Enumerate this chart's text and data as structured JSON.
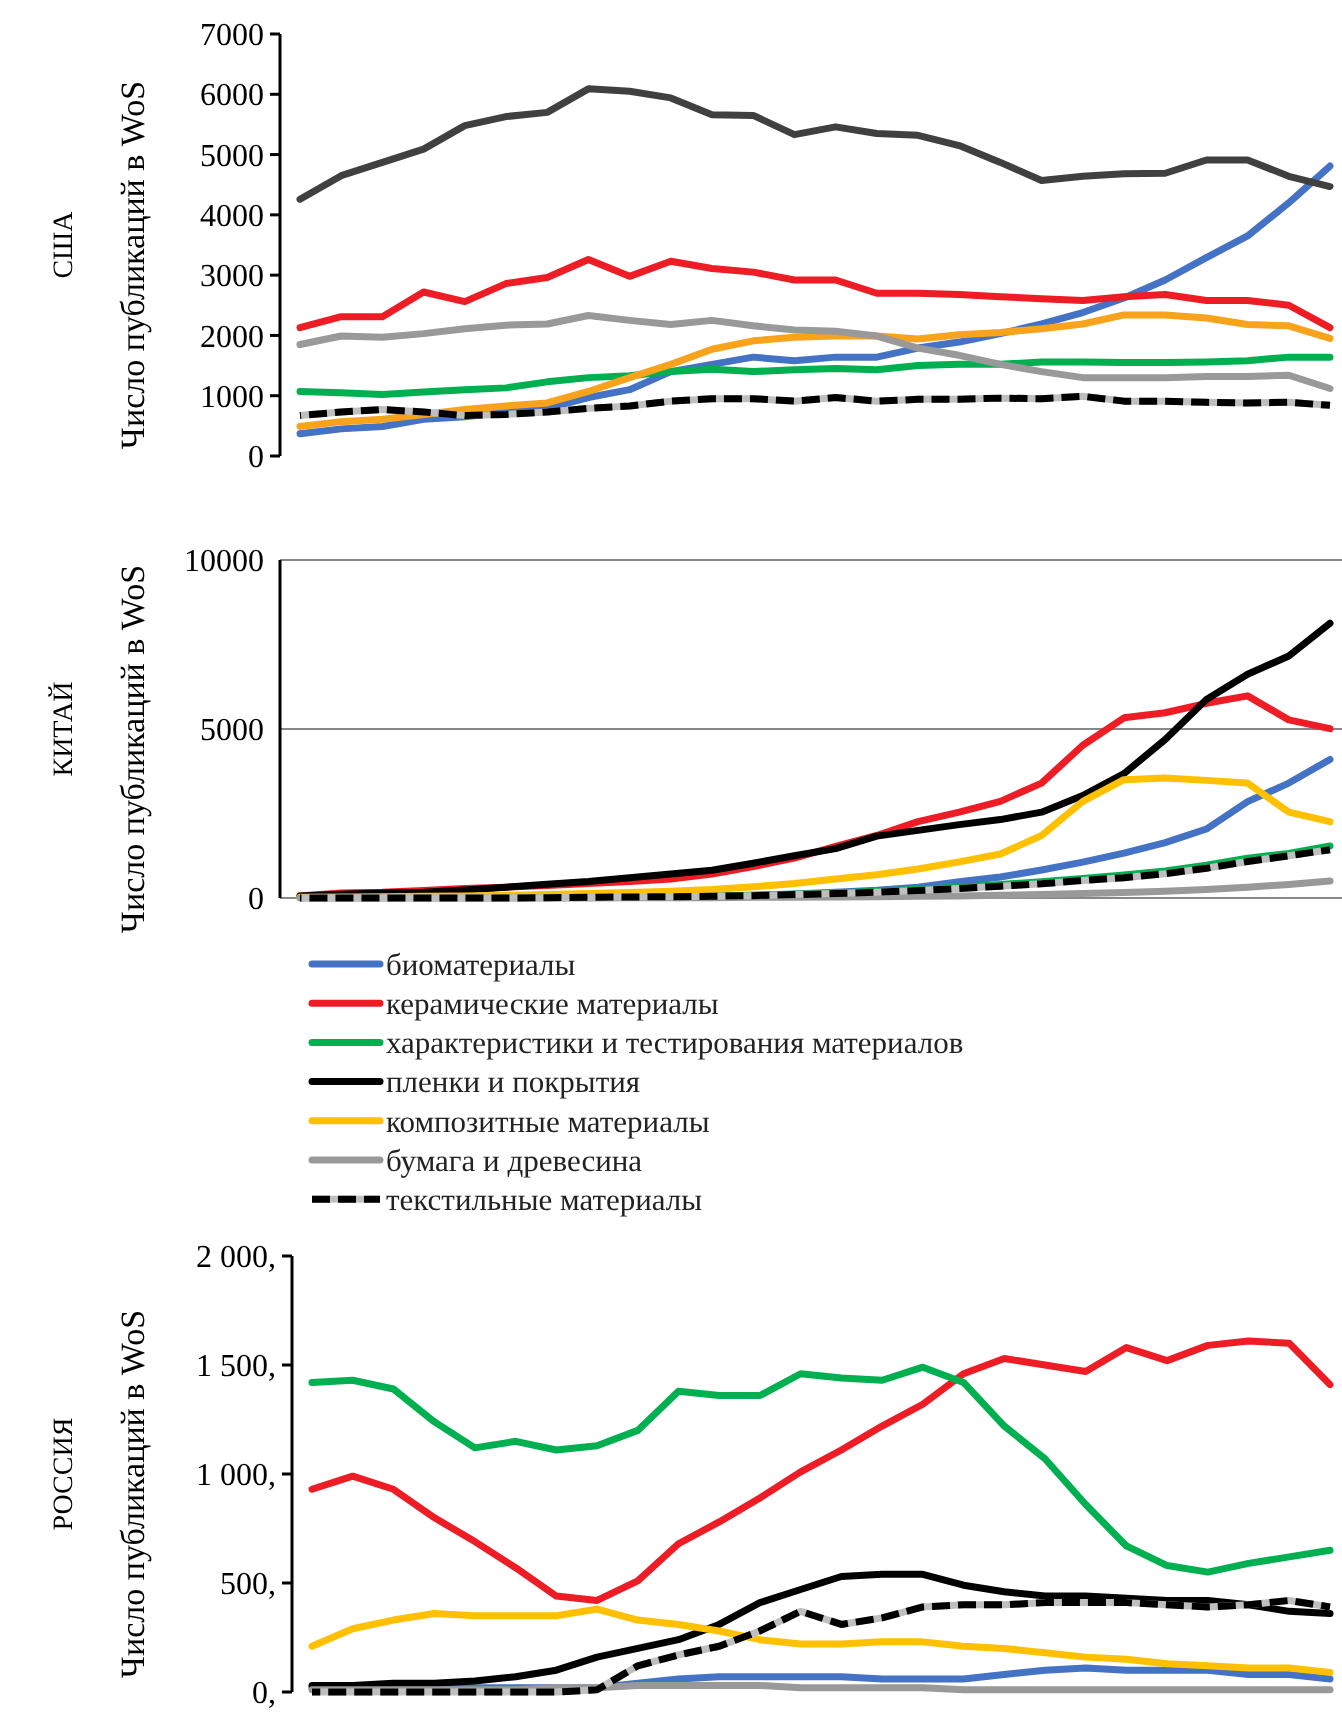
{
  "chart_data": [
    {
      "type": "line",
      "title": "США",
      "ylabel": "Число публикаций в WoS",
      "categories": [
        null,
        null,
        null,
        null,
        null,
        null,
        null,
        null,
        null,
        null,
        null,
        null,
        null,
        null,
        null,
        null,
        null,
        null,
        null,
        null,
        null,
        null,
        null,
        null,
        null,
        null
      ],
      "ylim": [
        0,
        7000
      ],
      "yticks": [
        0,
        1000,
        2000,
        3000,
        4000,
        5000,
        6000,
        7000
      ],
      "tick_labels": "y",
      "grid": false,
      "legend": false,
      "series": [
        {
          "color": "#4472c4",
          "values": [
            370,
            450,
            490,
            610,
            650,
            730,
            790,
            970,
            1100,
            1400,
            1520,
            1640,
            1580,
            1640,
            1640,
            1790,
            1890,
            2030,
            2190,
            2380,
            2620,
            2920,
            3290,
            3650,
            4200,
            4810
          ]
        },
        {
          "color": "#ee1c25",
          "values": [
            2130,
            2310,
            2310,
            2720,
            2560,
            2860,
            2960,
            3260,
            2980,
            3230,
            3110,
            3050,
            2920,
            2920,
            2700,
            2700,
            2680,
            2640,
            2610,
            2580,
            2640,
            2680,
            2580,
            2580,
            2500,
            2130
          ]
        },
        {
          "color": "#00b050",
          "values": [
            1070,
            1050,
            1020,
            1060,
            1100,
            1130,
            1230,
            1300,
            1330,
            1400,
            1440,
            1400,
            1430,
            1450,
            1430,
            1500,
            1520,
            1520,
            1560,
            1560,
            1550,
            1550,
            1560,
            1580,
            1640,
            1640
          ]
        },
        {
          "color": "#404040",
          "values": [
            4260,
            4650,
            4870,
            5090,
            5480,
            5630,
            5700,
            6090,
            6050,
            5940,
            5660,
            5650,
            5330,
            5460,
            5350,
            5320,
            5150,
            4870,
            4570,
            4640,
            4680,
            4690,
            4910,
            4910,
            4640,
            4470
          ]
        },
        {
          "color": "#f9a21b",
          "values": [
            490,
            570,
            610,
            690,
            770,
            830,
            880,
            1070,
            1300,
            1520,
            1770,
            1910,
            1970,
            1990,
            1990,
            1940,
            2010,
            2050,
            2110,
            2190,
            2340,
            2340,
            2290,
            2180,
            2160,
            1950
          ]
        },
        {
          "color": "#999999",
          "values": [
            1850,
            1990,
            1970,
            2030,
            2110,
            2170,
            2190,
            2330,
            2250,
            2180,
            2250,
            2160,
            2090,
            2070,
            1990,
            1790,
            1670,
            1520,
            1400,
            1300,
            1300,
            1300,
            1320,
            1320,
            1340,
            1120
          ]
        },
        {
          "color": "#000000",
          "line_style": "dashed",
          "values": [
            670,
            730,
            770,
            730,
            670,
            690,
            730,
            790,
            830,
            910,
            950,
            950,
            910,
            970,
            910,
            940,
            940,
            960,
            950,
            990,
            910,
            910,
            890,
            880,
            890,
            840
          ]
        }
      ]
    },
    {
      "type": "line",
      "title": "КИТАЙ",
      "ylabel": "Число публикаций в WoS",
      "categories": [
        null,
        null,
        null,
        null,
        null,
        null,
        null,
        null,
        null,
        null,
        null,
        null,
        null,
        null,
        null,
        null,
        null,
        null,
        null,
        null,
        null,
        null,
        null,
        null,
        null,
        null
      ],
      "ylim": [
        0,
        10000
      ],
      "yticks": [
        0,
        5000,
        10000
      ],
      "tick_labels": "y",
      "grid": "y",
      "legend": "bottom",
      "series": [
        {
          "name": "биоматериалы",
          "color": "#4472c4",
          "values": [
            null,
            null,
            null,
            null,
            null,
            null,
            null,
            null,
            null,
            null,
            60,
            80,
            120,
            170,
            230,
            320,
            480,
            620,
            830,
            1060,
            1330,
            1640,
            2040,
            2850,
            3400,
            4100
          ]
        },
        {
          "name": "керамические материалы",
          "color": "#ee1c25",
          "values": [
            60,
            150,
            170,
            220,
            280,
            320,
            370,
            430,
            490,
            560,
            710,
            930,
            1180,
            1530,
            1850,
            2260,
            2540,
            2860,
            3400,
            4520,
            5330,
            5480,
            5760,
            5980,
            5270,
            5010
          ]
        },
        {
          "name": "характеристики и тестирования материалов",
          "color": "#00b050",
          "values": [
            null,
            null,
            null,
            null,
            null,
            null,
            null,
            null,
            null,
            null,
            60,
            80,
            110,
            150,
            200,
            260,
            320,
            400,
            480,
            580,
            680,
            800,
            970,
            1180,
            1320,
            1540
          ]
        },
        {
          "name": "пленки и покрытия",
          "color": "#000000",
          "values": [
            60,
            110,
            150,
            170,
            240,
            320,
            410,
            490,
            600,
            710,
            820,
            1030,
            1250,
            1460,
            1830,
            2000,
            2170,
            2320,
            2540,
            3030,
            3680,
            4690,
            5870,
            6620,
            7160,
            8130
          ]
        },
        {
          "name": "композитные материалы",
          "color": "#ffc000",
          "values": [
            20,
            30,
            40,
            50,
            60,
            80,
            100,
            130,
            160,
            200,
            250,
            330,
            430,
            560,
            690,
            860,
            1070,
            1300,
            1850,
            2860,
            3500,
            3550,
            3480,
            3400,
            2540,
            2260
          ]
        },
        {
          "name": "бумага и древесина",
          "color": "#999999",
          "values": [
            0,
            0,
            0,
            0,
            0,
            0,
            0,
            0,
            10,
            10,
            10,
            20,
            20,
            30,
            40,
            50,
            60,
            80,
            100,
            130,
            160,
            200,
            250,
            320,
            400,
            500
          ]
        },
        {
          "name": "текстильные материалы",
          "color": "#000000",
          "line_style": "dashed",
          "values": [
            0,
            0,
            0,
            0,
            0,
            0,
            10,
            20,
            30,
            40,
            50,
            70,
            100,
            130,
            170,
            220,
            280,
            350,
            420,
            520,
            600,
            720,
            880,
            1080,
            1250,
            1430
          ]
        }
      ]
    },
    {
      "type": "line",
      "title": "РОССИЯ",
      "ylabel": "Число публикаций в WoS",
      "categories": [
        null,
        null,
        null,
        null,
        null,
        null,
        null,
        null,
        null,
        null,
        null,
        null,
        null,
        null,
        null,
        null,
        null,
        null,
        null,
        null,
        null,
        null,
        null,
        null,
        null,
        null
      ],
      "ylim": [
        0,
        2000
      ],
      "yticks": [
        {
          "value": 0,
          "label": "0,"
        },
        {
          "value": 500,
          "label": "500,"
        },
        {
          "value": 1000,
          "label": "1 000,"
        },
        {
          "value": 1500,
          "label": "1 500,"
        },
        {
          "value": 2000,
          "label": "2 000,"
        }
      ],
      "tick_labels": "y",
      "grid": false,
      "legend": false,
      "series": [
        {
          "color": "#4472c4",
          "values": [
            20,
            20,
            20,
            20,
            20,
            20,
            20,
            20,
            40,
            60,
            70,
            70,
            70,
            70,
            60,
            60,
            60,
            80,
            100,
            110,
            100,
            100,
            100,
            80,
            80,
            60
          ]
        },
        {
          "color": "#ee1c25",
          "values": [
            930,
            990,
            930,
            800,
            690,
            570,
            440,
            420,
            510,
            680,
            780,
            890,
            1010,
            1110,
            1220,
            1320,
            1460,
            1530,
            1500,
            1470,
            1580,
            1520,
            1590,
            1610,
            1600,
            1410
          ]
        },
        {
          "color": "#00b050",
          "values": [
            1420,
            1430,
            1390,
            1240,
            1120,
            1150,
            1110,
            1130,
            1200,
            1380,
            1360,
            1360,
            1460,
            1440,
            1430,
            1490,
            1420,
            1220,
            1070,
            860,
            670,
            580,
            550,
            590,
            620,
            650
          ]
        },
        {
          "color": "#000000",
          "values": [
            30,
            30,
            40,
            40,
            50,
            70,
            100,
            160,
            200,
            240,
            310,
            410,
            470,
            530,
            540,
            540,
            490,
            460,
            440,
            440,
            430,
            420,
            420,
            400,
            370,
            360
          ]
        },
        {
          "color": "#ffc000",
          "values": [
            210,
            290,
            330,
            360,
            350,
            350,
            350,
            380,
            330,
            310,
            280,
            240,
            220,
            220,
            230,
            230,
            210,
            200,
            180,
            160,
            150,
            130,
            120,
            110,
            110,
            90
          ]
        },
        {
          "color": "#999999",
          "values": [
            10,
            10,
            10,
            10,
            10,
            10,
            20,
            20,
            30,
            30,
            30,
            30,
            20,
            20,
            20,
            20,
            10,
            10,
            10,
            10,
            10,
            10,
            10,
            10,
            10,
            10
          ]
        },
        {
          "color": "#000000",
          "line_style": "dashed",
          "values": [
            0,
            0,
            0,
            0,
            0,
            0,
            0,
            10,
            120,
            170,
            210,
            280,
            370,
            310,
            340,
            390,
            400,
            400,
            410,
            410,
            410,
            400,
            390,
            400,
            420,
            390
          ]
        }
      ]
    }
  ]
}
